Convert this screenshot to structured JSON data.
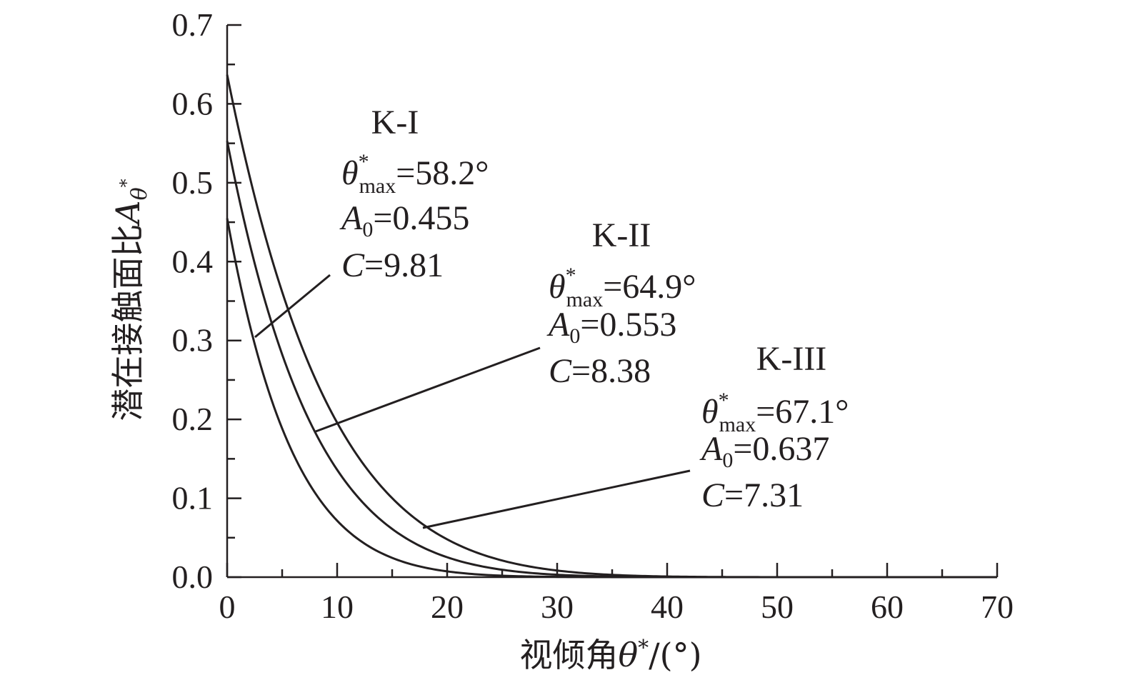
{
  "chart_data": {
    "type": "line",
    "title": "",
    "xlabel": "视倾角θ*/(°)",
    "xlabel_parts": {
      "text": "视倾角",
      "symbol": "θ",
      "sup": "*",
      "unit": "/(°)"
    },
    "ylabel": "潜在接触面比Aθ*",
    "ylabel_parts": {
      "text": "潜在接触面比",
      "symbol": "A",
      "sub": "θ",
      "subsup": "*"
    },
    "xlim": [
      0,
      70
    ],
    "ylim": [
      0,
      0.7
    ],
    "xticks": [
      0,
      10,
      20,
      30,
      40,
      50,
      60,
      70
    ],
    "xtick_labels": [
      "0",
      "10",
      "20",
      "30",
      "40",
      "50",
      "60",
      "70"
    ],
    "yticks": [
      0,
      0.1,
      0.2,
      0.3,
      0.4,
      0.5,
      0.6,
      0.7
    ],
    "ytick_labels": [
      "0.0",
      "0.1",
      "0.2",
      "0.3",
      "0.4",
      "0.5",
      "0.6",
      "0.7"
    ],
    "grid": false,
    "series": [
      {
        "name": "K-I",
        "theta_max": "58.2°",
        "A0": "0.455",
        "C": "9.81",
        "A0_value": 0.455,
        "theta_max_value": 58.2,
        "C_value": 9.81
      },
      {
        "name": "K-II",
        "theta_max": "64.9°",
        "A0": "0.553",
        "C": "8.38",
        "A0_value": 0.553,
        "theta_max_value": 64.9,
        "C_value": 8.38
      },
      {
        "name": "K-III",
        "theta_max": "67.1°",
        "A0": "0.637",
        "C": "7.31",
        "A0_value": 0.637,
        "theta_max_value": 67.1,
        "C_value": 7.31
      }
    ],
    "annotation_labels": {
      "theta": "θ",
      "theta_sup": "*",
      "theta_sub": "max",
      "A": "A",
      "A_sub": "0",
      "C": "C",
      "eq": "="
    }
  }
}
